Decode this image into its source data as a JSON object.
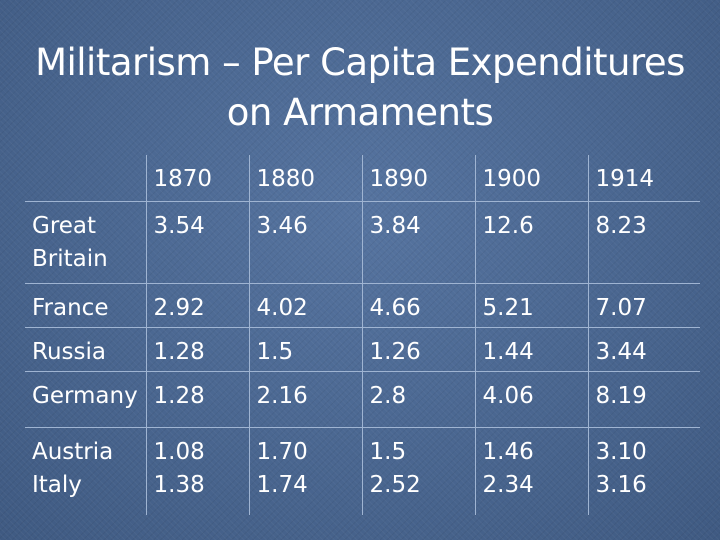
{
  "slide": {
    "title_line1": "Militarism – Per Capita Expenditures",
    "title_line2": "on Armaments"
  },
  "table": {
    "header": [
      "",
      "1870",
      "1880",
      "1890",
      "1900",
      "1914"
    ],
    "rows": [
      {
        "country": "Great Britain",
        "values": [
          "3.54",
          "3.46",
          "3.84",
          "12.6",
          "8.23"
        ]
      },
      {
        "country": "France",
        "values": [
          "2.92",
          "4.02",
          "4.66",
          "5.21",
          "7.07"
        ]
      },
      {
        "country": "Russia",
        "values": [
          "1.28",
          "1.5",
          "1.26",
          "1.44",
          "3.44"
        ]
      },
      {
        "country": "Germany",
        "values": [
          "1.28",
          "2.16",
          "2.8",
          "4.06",
          "8.19"
        ]
      },
      {
        "country": "Austria",
        "values": [
          "1.08",
          "1.70",
          "1.5",
          "1.46",
          "3.10"
        ]
      },
      {
        "country": "Italy",
        "values": [
          "1.38",
          "1.74",
          "2.52",
          "2.34",
          "3.16"
        ]
      }
    ]
  }
}
